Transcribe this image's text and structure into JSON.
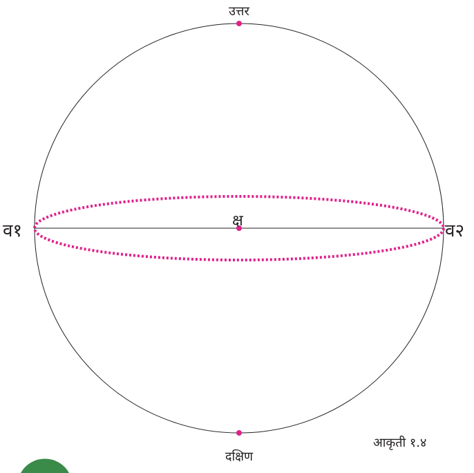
{
  "labels": {
    "north": "उत्तर",
    "south": "दक्षिण",
    "west": "व१",
    "east": "व२",
    "center": "क्ष",
    "caption": "आकृती १.४"
  }
}
